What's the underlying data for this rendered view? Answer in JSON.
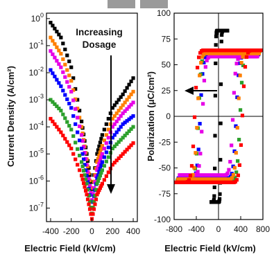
{
  "chart_data": [
    {
      "type": "scatter",
      "xlabel": "Electric Field (kV/cm)",
      "ylabel": "Current Density (A/cm²)",
      "y_scale": "log",
      "xlim": [
        -440,
        440
      ],
      "ylim_log10": [
        -7.5,
        0.2
      ],
      "x_ticks": [
        "-400",
        "-200",
        "0",
        "200",
        "400"
      ],
      "y_ticks": [
        {
          "base": "10",
          "exp": "0",
          "v": 0
        },
        {
          "base": "10",
          "exp": "-1",
          "v": -1
        },
        {
          "base": "10",
          "exp": "-2",
          "v": -2
        },
        {
          "base": "10",
          "exp": "-3",
          "v": -3
        },
        {
          "base": "10",
          "exp": "-4",
          "v": -4
        },
        {
          "base": "10",
          "exp": "-5",
          "v": -5
        },
        {
          "base": "10",
          "exp": "-6",
          "v": -6
        },
        {
          "base": "10",
          "exp": "-7",
          "v": -7
        }
      ],
      "annotation": [
        "Increasing",
        "Dosage"
      ],
      "series": [
        {
          "color": "#000000",
          "marker": "square",
          "x": [
            -400,
            -300,
            -200,
            -100,
            -50,
            0,
            50,
            100,
            200,
            300,
            400
          ],
          "log10_y": [
            -0.15,
            -0.7,
            -1.8,
            -3.8,
            -5.0,
            -6.3,
            -5.0,
            -4.3,
            -3.3,
            -2.8,
            -2.2
          ]
        },
        {
          "color": "#ff7f00",
          "marker": "square",
          "x": [
            -400,
            -300,
            -200,
            -100,
            -50,
            0,
            50,
            100,
            200,
            300,
            400
          ],
          "log10_y": [
            -0.7,
            -1.3,
            -2.3,
            -4.0,
            -5.2,
            -6.5,
            -5.3,
            -4.7,
            -3.7,
            -3.2,
            -2.7
          ]
        },
        {
          "color": "#e600e6",
          "marker": "square",
          "x": [
            -400,
            -300,
            -200,
            -100,
            -50,
            0,
            50,
            100,
            200,
            300,
            400
          ],
          "log10_y": [
            -1.2,
            -1.8,
            -2.7,
            -4.3,
            -5.4,
            -6.7,
            -5.6,
            -5.0,
            -4.0,
            -3.5,
            -3.1
          ]
        },
        {
          "color": "#0000ff",
          "marker": "square",
          "x": [
            -400,
            -300,
            -200,
            -100,
            -50,
            0,
            50,
            100,
            200,
            300,
            400
          ],
          "log10_y": [
            -1.9,
            -2.5,
            -3.3,
            -4.8,
            -5.8,
            -7.0,
            -5.9,
            -5.3,
            -4.4,
            -3.9,
            -3.6
          ]
        },
        {
          "color": "#2ca02c",
          "marker": "square",
          "x": [
            -400,
            -300,
            -200,
            -100,
            -50,
            0,
            50,
            100,
            200,
            300,
            400
          ],
          "log10_y": [
            -3.0,
            -3.4,
            -4.1,
            -5.3,
            -6.1,
            -7.2,
            -6.1,
            -5.6,
            -4.8,
            -4.4,
            -4.0
          ]
        },
        {
          "color": "#ff0000",
          "marker": "square",
          "x": [
            -400,
            -300,
            -200,
            -100,
            -50,
            0,
            50,
            100,
            200,
            300,
            400
          ],
          "log10_y": [
            -3.7,
            -4.2,
            -4.8,
            -5.8,
            -6.5,
            -7.4,
            -6.5,
            -6.1,
            -5.4,
            -5.0,
            -4.6
          ]
        }
      ]
    },
    {
      "type": "scatter",
      "xlabel": "Electric Field (kV/cm)",
      "ylabel": "Polarization (μC/cm²)",
      "xlim": [
        -800,
        800
      ],
      "ylim": [
        -100,
        100
      ],
      "x_ticks": [
        "-800",
        "-400",
        "0",
        "400",
        "800"
      ],
      "y_ticks": [
        "100",
        "75",
        "50",
        "25",
        "0",
        "-25",
        "-50",
        "-75",
        "-100"
      ],
      "annotation_arrow": "left",
      "series": [
        {
          "color": "#000000",
          "marker": "square",
          "loop": {
            "ec_pos": 40,
            "ec_neg": -60,
            "pmax": 83,
            "pmin": -83,
            "emax": 160,
            "emin": -130,
            "pr": 78
          }
        },
        {
          "color": "#0000ff",
          "marker": "square",
          "loop": {
            "ec_pos": 320,
            "ec_neg": -330,
            "pmax": 60,
            "pmin": -60,
            "emax": 720,
            "emin": -720,
            "pr": 52
          }
        },
        {
          "color": "#2ca02c",
          "marker": "square",
          "loop": {
            "ec_pos": 390,
            "ec_neg": -360,
            "pmax": 63,
            "pmin": -62,
            "emax": 740,
            "emin": -740,
            "pr": 55
          }
        },
        {
          "color": "#e600e6",
          "marker": "square",
          "loop": {
            "ec_pos": 260,
            "ec_neg": -290,
            "pmax": 58,
            "pmin": -57,
            "emax": 700,
            "emin": -700,
            "pr": 48
          }
        },
        {
          "color": "#ff7f00",
          "marker": "square",
          "loop": {
            "ec_pos": 350,
            "ec_neg": -380,
            "pmax": 61,
            "pmin": -61,
            "emax": 730,
            "emin": -730,
            "pr": 52
          }
        },
        {
          "color": "#ff0000",
          "marker": "square",
          "loop": {
            "ec_pos": 430,
            "ec_neg": -430,
            "pmax": 64,
            "pmin": -64,
            "emax": 760,
            "emin": -760,
            "pr": 56
          }
        }
      ]
    }
  ]
}
